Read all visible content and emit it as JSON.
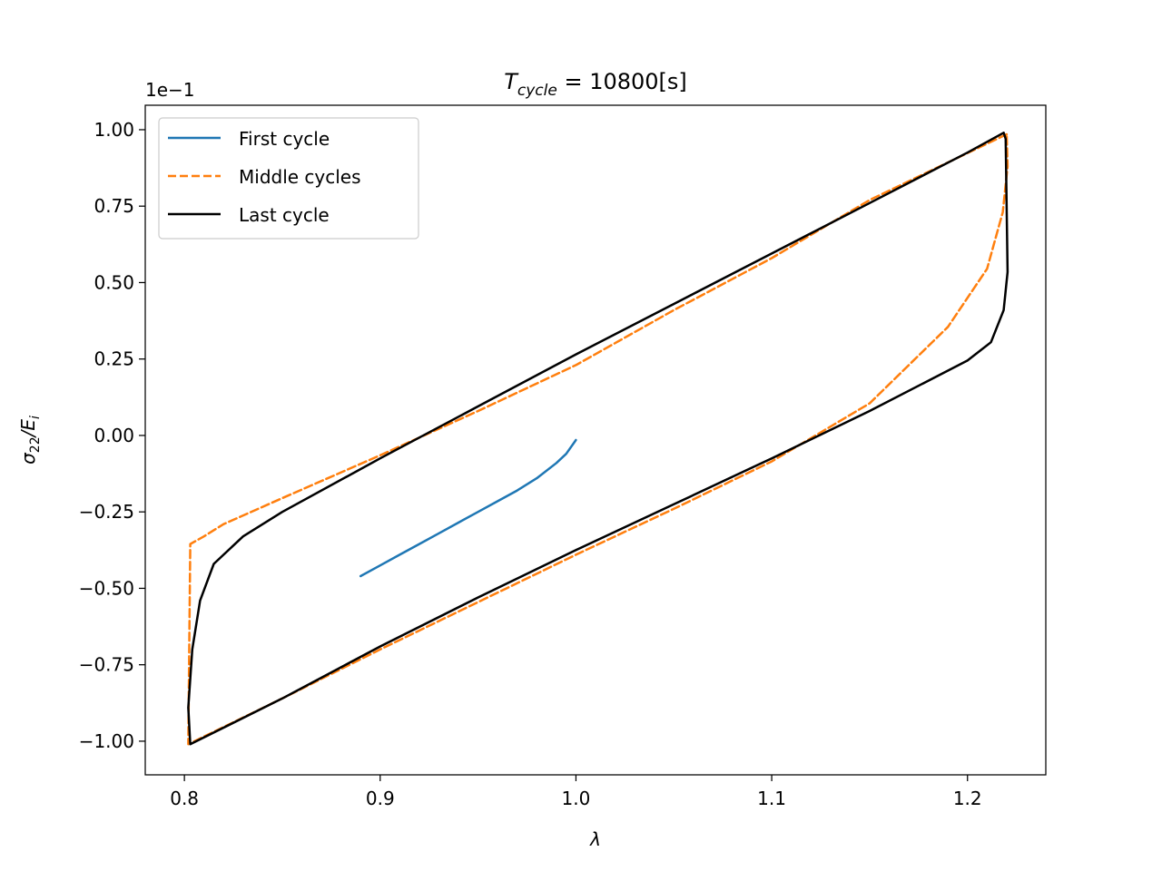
{
  "chart_data": {
    "type": "line",
    "title_main": "T",
    "title_sub": "cycle",
    "title_rest": " = 10800[s]",
    "xlabel": "λ",
    "ylabel_main": "σ",
    "ylabel_sub": "22",
    "ylabel_mid": "/E",
    "ylabel_sub2": "i",
    "offset_text": "1e−1",
    "xlim": [
      0.78,
      1.24
    ],
    "ylim": [
      -1.11,
      1.08
    ],
    "x_ticks": [
      0.8,
      0.9,
      1.0,
      1.1,
      1.2
    ],
    "x_tick_labels": [
      "0.8",
      "0.9",
      "1.0",
      "1.1",
      "1.2"
    ],
    "y_ticks": [
      1.0,
      0.75,
      0.5,
      0.25,
      0.0,
      -0.25,
      -0.5,
      -0.75,
      -1.0
    ],
    "y_tick_labels": [
      "1.00",
      "0.75",
      "0.50",
      "0.25",
      "0.00",
      "−0.25",
      "−0.50",
      "−0.75",
      "−1.00"
    ],
    "grid": false,
    "legend_position": "top-left",
    "series": [
      {
        "name": "First cycle",
        "color": "#1f77b4",
        "dash": "solid",
        "x": [
          1.0,
          0.995,
          0.99,
          0.98,
          0.97,
          0.96,
          0.95,
          0.94,
          0.93,
          0.92,
          0.91,
          0.9,
          0.89
        ],
        "y": [
          -0.015,
          -0.06,
          -0.09,
          -0.14,
          -0.18,
          -0.215,
          -0.25,
          -0.285,
          -0.32,
          -0.355,
          -0.39,
          -0.425,
          -0.46
        ]
      },
      {
        "name": "Middle cycles",
        "color": "#ff7f0e",
        "dash": "dashed",
        "x": [
          1.22,
          1.15,
          1.1,
          1.05,
          1.0,
          0.95,
          0.9,
          0.85,
          0.82,
          0.81,
          0.803,
          0.802,
          0.85,
          0.9,
          0.95,
          1.0,
          1.05,
          1.1,
          1.15,
          1.19,
          1.21,
          1.218,
          1.2205,
          1.22
        ],
        "y": [
          0.985,
          0.77,
          0.58,
          0.41,
          0.23,
          0.08,
          -0.065,
          -0.205,
          -0.29,
          -0.33,
          -0.355,
          -1.01,
          -0.86,
          -0.7,
          -0.545,
          -0.39,
          -0.24,
          -0.085,
          0.105,
          0.355,
          0.545,
          0.73,
          0.88,
          0.985
        ]
      },
      {
        "name": "Last cycle",
        "color": "#000000",
        "dash": "solid",
        "x": [
          1.2185,
          1.2,
          1.15,
          1.1,
          1.05,
          1.0,
          0.95,
          0.9,
          0.85,
          0.83,
          0.815,
          0.808,
          0.804,
          0.802,
          0.803,
          0.85,
          0.9,
          0.95,
          1.0,
          1.05,
          1.1,
          1.15,
          1.2,
          1.212,
          1.2185,
          1.2205,
          1.2195,
          1.2185
        ],
        "y": [
          0.99,
          0.925,
          0.76,
          0.595,
          0.43,
          0.265,
          0.095,
          -0.075,
          -0.25,
          -0.33,
          -0.42,
          -0.54,
          -0.7,
          -0.89,
          -1.01,
          -0.86,
          -0.69,
          -0.53,
          -0.375,
          -0.225,
          -0.075,
          0.08,
          0.245,
          0.305,
          0.41,
          0.535,
          0.97,
          0.99
        ]
      }
    ]
  }
}
